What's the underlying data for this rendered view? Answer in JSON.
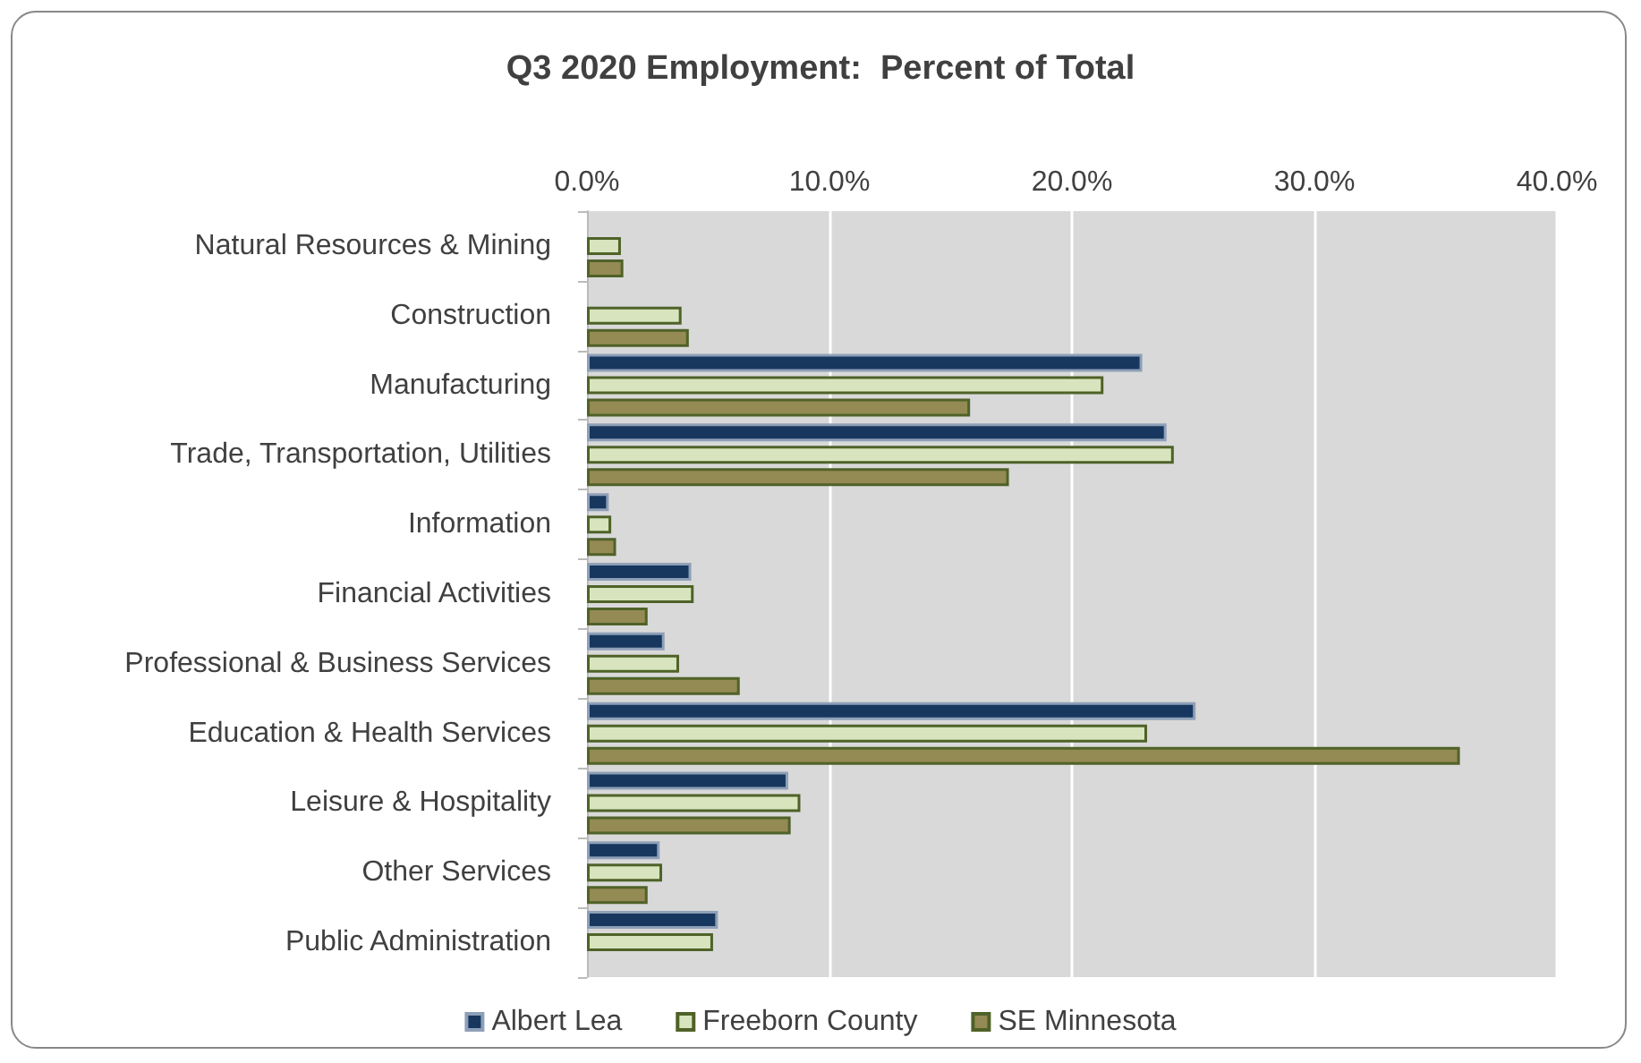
{
  "chart_data": {
    "type": "bar",
    "orientation": "horizontal",
    "title": "Q3 2020 Employment:  Percent of Total",
    "categories": [
      "Natural Resources & Mining",
      "Construction",
      "Manufacturing",
      "Trade, Transportation, Utilities",
      "Information",
      "Financial Activities",
      "Professional & Business Services",
      "Education & Health Services",
      "Leisure & Hospitality",
      "Other Services",
      "Public Administration"
    ],
    "series": [
      {
        "name": "Albert Lea",
        "color": "#17375e",
        "values": [
          null,
          null,
          22.9,
          23.9,
          0.9,
          4.3,
          3.2,
          25.1,
          8.3,
          3.0,
          5.4
        ]
      },
      {
        "name": "Freeborn County",
        "color": "#d7e4bd",
        "values": [
          1.4,
          3.9,
          21.3,
          24.2,
          1.0,
          4.4,
          3.8,
          23.1,
          8.8,
          3.1,
          5.2
        ]
      },
      {
        "name": "SE Minnesota",
        "color": "#948a54",
        "values": [
          1.5,
          4.2,
          15.8,
          17.4,
          1.2,
          2.5,
          6.3,
          36.0,
          8.4,
          2.5,
          null
        ]
      }
    ],
    "xlim": [
      0,
      40
    ],
    "xticks": [
      {
        "value": 0,
        "label": "0.0%"
      },
      {
        "value": 10,
        "label": "10.0%"
      },
      {
        "value": 20,
        "label": "20.0%"
      },
      {
        "value": 30,
        "label": "30.0%"
      },
      {
        "value": 40,
        "label": "40.0%"
      }
    ],
    "grid": "x",
    "legend": "bottom"
  }
}
